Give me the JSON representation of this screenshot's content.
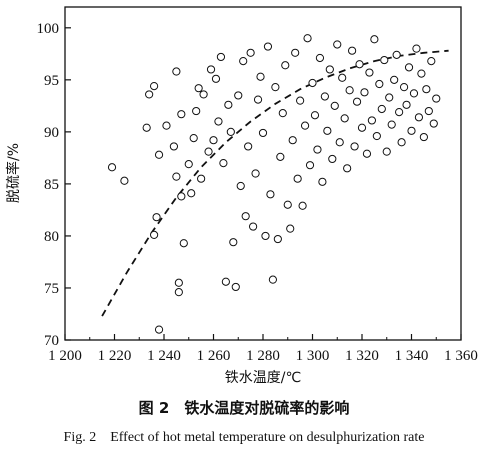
{
  "chart_data": {
    "type": "scatter",
    "xlabel": "铁水温度/℃",
    "ylabel": "脱硫率/%",
    "xlim": [
      1200,
      1360
    ],
    "ylim": [
      70,
      102
    ],
    "xticks": [
      1200,
      1220,
      1240,
      1260,
      1280,
      1300,
      1320,
      1340,
      1360
    ],
    "xtick_labels": [
      "1 200",
      "1 220",
      "1 240",
      "1 260",
      "1 280",
      "1 300",
      "1 320",
      "1 340",
      "1 360"
    ],
    "yticks": [
      70,
      75,
      80,
      85,
      90,
      95,
      100
    ],
    "ytick_labels": [
      "70",
      "75",
      "80",
      "85",
      "90",
      "95",
      "100"
    ],
    "grid": false,
    "marker": "open-circle",
    "trend_line": {
      "style": "dashed",
      "x": [
        1215,
        1225,
        1235,
        1245,
        1255,
        1265,
        1275,
        1285,
        1295,
        1305,
        1315,
        1325,
        1335,
        1345,
        1355
      ],
      "y": [
        72.3,
        76.5,
        80.3,
        83.7,
        86.6,
        89.0,
        91.0,
        92.7,
        94.1,
        95.2,
        96.1,
        96.8,
        97.3,
        97.6,
        97.8
      ]
    },
    "points": [
      [
        1219,
        86.6
      ],
      [
        1224,
        85.3
      ],
      [
        1233,
        90.4
      ],
      [
        1234,
        93.6
      ],
      [
        1236,
        94.4
      ],
      [
        1238,
        87.8
      ],
      [
        1237,
        81.8
      ],
      [
        1236,
        80.1
      ],
      [
        1238,
        71.0
      ],
      [
        1241,
        90.6
      ],
      [
        1244,
        88.6
      ],
      [
        1245,
        85.7
      ],
      [
        1247,
        91.7
      ],
      [
        1245,
        95.8
      ],
      [
        1247,
        83.8
      ],
      [
        1246,
        75.5
      ],
      [
        1246,
        74.6
      ],
      [
        1248,
        79.3
      ],
      [
        1250,
        86.9
      ],
      [
        1251,
        84.1
      ],
      [
        1252,
        89.4
      ],
      [
        1253,
        92.0
      ],
      [
        1254,
        94.2
      ],
      [
        1255,
        85.5
      ],
      [
        1256,
        93.6
      ],
      [
        1258,
        88.1
      ],
      [
        1259,
        96.0
      ],
      [
        1260,
        89.2
      ],
      [
        1261,
        95.1
      ],
      [
        1262,
        91.0
      ],
      [
        1263,
        97.2
      ],
      [
        1264,
        87.0
      ],
      [
        1265,
        75.6
      ],
      [
        1266,
        92.6
      ],
      [
        1267,
        90.0
      ],
      [
        1268,
        79.4
      ],
      [
        1269,
        75.1
      ],
      [
        1270,
        93.5
      ],
      [
        1271,
        84.8
      ],
      [
        1272,
        96.8
      ],
      [
        1273,
        81.9
      ],
      [
        1274,
        88.6
      ],
      [
        1275,
        97.6
      ],
      [
        1276,
        80.9
      ],
      [
        1277,
        86.0
      ],
      [
        1278,
        93.1
      ],
      [
        1279,
        95.3
      ],
      [
        1280,
        89.9
      ],
      [
        1281,
        80.0
      ],
      [
        1282,
        98.2
      ],
      [
        1283,
        84.0
      ],
      [
        1284,
        75.8
      ],
      [
        1285,
        94.3
      ],
      [
        1286,
        79.7
      ],
      [
        1287,
        87.6
      ],
      [
        1288,
        91.8
      ],
      [
        1289,
        96.4
      ],
      [
        1290,
        83.0
      ],
      [
        1291,
        80.7
      ],
      [
        1292,
        89.2
      ],
      [
        1293,
        97.6
      ],
      [
        1294,
        85.5
      ],
      [
        1295,
        93.0
      ],
      [
        1296,
        82.9
      ],
      [
        1297,
        90.6
      ],
      [
        1298,
        99.0
      ],
      [
        1299,
        86.8
      ],
      [
        1300,
        94.7
      ],
      [
        1301,
        91.6
      ],
      [
        1302,
        88.3
      ],
      [
        1303,
        97.1
      ],
      [
        1304,
        85.2
      ],
      [
        1305,
        93.4
      ],
      [
        1306,
        90.1
      ],
      [
        1307,
        96.0
      ],
      [
        1308,
        87.4
      ],
      [
        1309,
        92.5
      ],
      [
        1310,
        98.4
      ],
      [
        1311,
        89.0
      ],
      [
        1312,
        95.2
      ],
      [
        1313,
        91.3
      ],
      [
        1314,
        86.5
      ],
      [
        1315,
        94.0
      ],
      [
        1316,
        97.8
      ],
      [
        1317,
        88.6
      ],
      [
        1318,
        92.9
      ],
      [
        1319,
        96.5
      ],
      [
        1320,
        90.4
      ],
      [
        1321,
        93.8
      ],
      [
        1322,
        87.9
      ],
      [
        1323,
        95.7
      ],
      [
        1324,
        91.1
      ],
      [
        1325,
        98.9
      ],
      [
        1326,
        89.6
      ],
      [
        1327,
        94.6
      ],
      [
        1328,
        92.2
      ],
      [
        1329,
        96.9
      ],
      [
        1330,
        88.1
      ],
      [
        1331,
        93.3
      ],
      [
        1332,
        90.7
      ],
      [
        1333,
        95.0
      ],
      [
        1334,
        97.4
      ],
      [
        1335,
        91.9
      ],
      [
        1336,
        89.0
      ],
      [
        1337,
        94.3
      ],
      [
        1338,
        92.6
      ],
      [
        1339,
        96.2
      ],
      [
        1340,
        90.1
      ],
      [
        1341,
        93.7
      ],
      [
        1342,
        98.0
      ],
      [
        1343,
        91.4
      ],
      [
        1344,
        95.6
      ],
      [
        1345,
        89.5
      ],
      [
        1346,
        94.1
      ],
      [
        1347,
        92.0
      ],
      [
        1348,
        96.8
      ],
      [
        1349,
        90.8
      ],
      [
        1350,
        93.2
      ]
    ]
  },
  "caption": {
    "cn": "图 2　铁水温度对脱硫率的影响",
    "en": "Fig. 2　Effect of hot metal temperature on desulphurization rate"
  }
}
